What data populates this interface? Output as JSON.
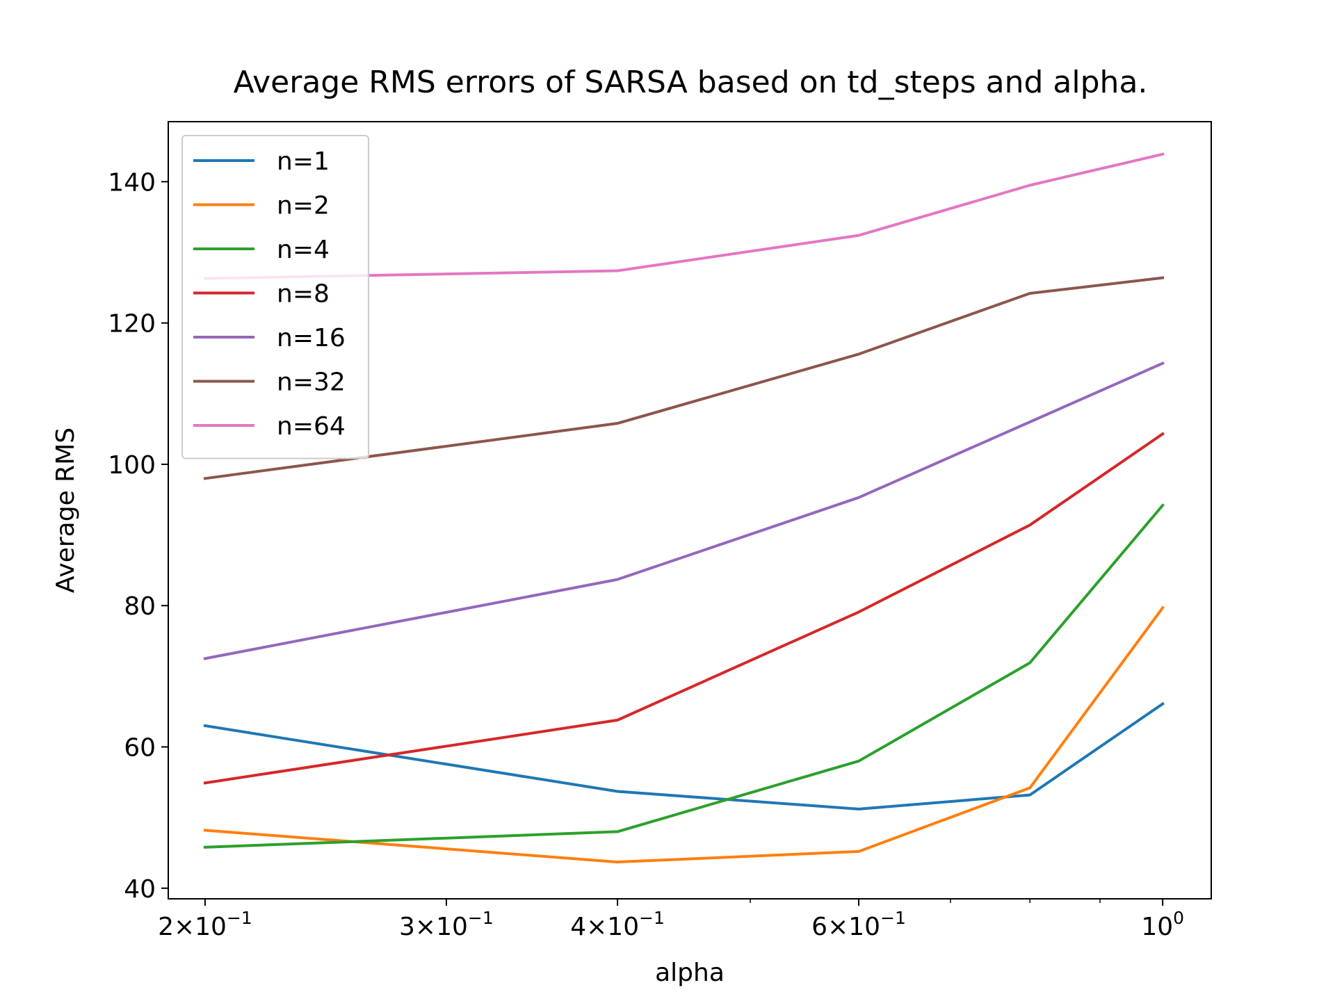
{
  "chart_data": {
    "type": "line",
    "title": "Average RMS errors of SARSA based on td_steps and alpha.",
    "xlabel": "alpha",
    "ylabel": "Average RMS",
    "x_scale": "log",
    "x": [
      0.2,
      0.4,
      0.6,
      0.8,
      1.0
    ],
    "xlim": [
      0.188,
      1.085
    ],
    "ylim": [
      38.5,
      148.5
    ],
    "x_ticks": [
      {
        "value": 0.2,
        "mant": "2",
        "exp": "−1"
      },
      {
        "value": 0.3,
        "mant": "3",
        "exp": "−1"
      },
      {
        "value": 0.4,
        "mant": "4",
        "exp": "−1"
      },
      {
        "value": 0.6,
        "mant": "6",
        "exp": "−1"
      },
      {
        "value": 1.0,
        "mant": "",
        "exp": "0"
      }
    ],
    "x_minor_ticks": [
      0.5,
      0.7,
      0.8,
      0.9
    ],
    "y_ticks": [
      40,
      60,
      80,
      100,
      120,
      140
    ],
    "grid": false,
    "legend_position": "upper-left",
    "series": [
      {
        "name": "n=1",
        "color": "#1f77b4",
        "values": [
          63.0,
          53.7,
          51.2,
          53.2,
          66.1
        ]
      },
      {
        "name": "n=2",
        "color": "#ff7f0e",
        "values": [
          48.2,
          43.7,
          45.2,
          54.2,
          79.7
        ]
      },
      {
        "name": "n=4",
        "color": "#2ca02c",
        "values": [
          45.8,
          48.0,
          58.0,
          71.9,
          94.2
        ]
      },
      {
        "name": "n=8",
        "color": "#d62728",
        "values": [
          54.9,
          63.8,
          79.1,
          91.4,
          104.3
        ]
      },
      {
        "name": "n=16",
        "color": "#9467bd",
        "values": [
          72.5,
          83.7,
          95.3,
          106.0,
          114.3
        ]
      },
      {
        "name": "n=32",
        "color": "#8c564b",
        "values": [
          98.0,
          105.8,
          115.6,
          124.2,
          126.4
        ]
      },
      {
        "name": "n=64",
        "color": "#e377c2",
        "values": [
          126.3,
          127.4,
          132.4,
          139.5,
          143.9
        ]
      }
    ]
  }
}
